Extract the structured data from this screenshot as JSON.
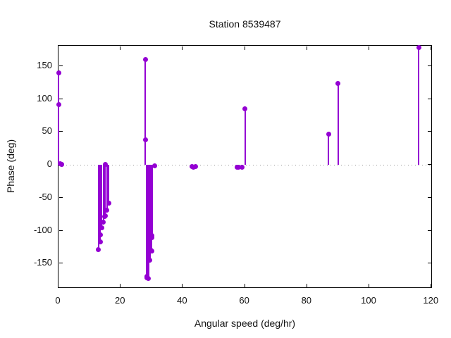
{
  "title": "Station 8539487",
  "accent_color": "#9400d3",
  "zero_line_color": "#999999",
  "chart_data": {
    "type": "scatter",
    "style": "impulses-and-points (stem plot)",
    "title": "Station 8539487",
    "xlabel": "Angular speed (deg/hr)",
    "ylabel": "Phase (deg)",
    "xlim": [
      0,
      120.4
    ],
    "ylim": [
      -188,
      181
    ],
    "xticks": [
      0,
      20,
      40,
      60,
      80,
      100,
      120
    ],
    "yticks": [
      -150,
      -100,
      -50,
      0,
      50,
      100,
      150
    ],
    "grid": false,
    "legend": "none",
    "zero_line": true,
    "marker_color": "#9400d3",
    "points": [
      [
        0.041,
        140
      ],
      [
        0.082,
        92
      ],
      [
        0.544,
        2
      ],
      [
        1.016,
        1
      ],
      [
        1.098,
        1
      ],
      [
        12.854,
        -129
      ],
      [
        13.399,
        -117
      ],
      [
        13.472,
        -106
      ],
      [
        13.943,
        -96
      ],
      [
        14.497,
        -87
      ],
      [
        14.959,
        -78
      ],
      [
        15.0,
        1
      ],
      [
        15.041,
        -77
      ],
      [
        15.585,
        -69
      ],
      [
        16.139,
        -58
      ],
      [
        27.895,
        160
      ],
      [
        27.968,
        38
      ],
      [
        28.44,
        -169
      ],
      [
        28.513,
        -171
      ],
      [
        28.984,
        -173
      ],
      [
        29.456,
        -145
      ],
      [
        29.528,
        -129
      ],
      [
        29.959,
        -131
      ],
      [
        30.0,
        -107
      ],
      [
        30.041,
        -109
      ],
      [
        30.082,
        -110
      ],
      [
        31.016,
        -1
      ],
      [
        42.927,
        -2
      ],
      [
        43.476,
        -3
      ],
      [
        44.025,
        -2
      ],
      [
        57.424,
        -4
      ],
      [
        57.968,
        -4
      ],
      [
        58.984,
        -3
      ],
      [
        60.0,
        85
      ],
      [
        86.952,
        47
      ],
      [
        90.0,
        124
      ],
      [
        115.936,
        178
      ]
    ]
  }
}
